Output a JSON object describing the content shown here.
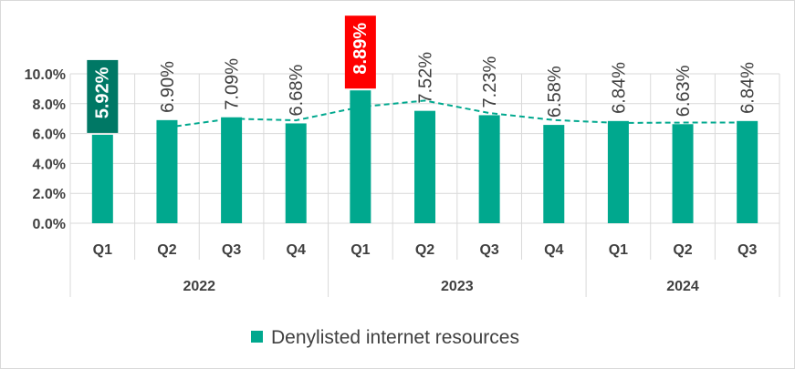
{
  "chart_data": {
    "type": "bar",
    "series": [
      {
        "name": "Denylisted internet resources",
        "values": [
          5.92,
          6.9,
          7.09,
          6.68,
          8.89,
          7.52,
          7.23,
          6.58,
          6.84,
          6.63,
          6.84
        ],
        "labels": [
          "5.92%",
          "6.90%",
          "7.09%",
          "6.68%",
          "8.89%",
          "7.52%",
          "7.23%",
          "6.58%",
          "6.84%",
          "6.63%",
          "6.84%"
        ],
        "color": "#00a88e"
      }
    ],
    "categories": [
      "Q1",
      "Q2",
      "Q3",
      "Q4",
      "Q1",
      "Q2",
      "Q3",
      "Q4",
      "Q1",
      "Q2",
      "Q3"
    ],
    "groups": [
      {
        "label": "2022",
        "count": 4
      },
      {
        "label": "2023",
        "count": 4
      },
      {
        "label": "2024",
        "count": 3
      }
    ],
    "yticks": [
      "0.0%",
      "2.0%",
      "4.0%",
      "6.0%",
      "8.0%",
      "10.0%"
    ],
    "ylim": [
      0,
      10
    ],
    "grid": true,
    "trendline": {
      "style": "dashed",
      "type": "moving-average",
      "period": 2,
      "color": "#00a88e",
      "values": [
        6.41,
        7.0,
        6.885,
        7.785,
        8.205,
        7.375,
        6.905,
        6.71,
        6.735,
        6.735
      ]
    },
    "highlights": [
      {
        "index": 0,
        "color": "#007865"
      },
      {
        "index": 4,
        "color": "#ff0000"
      }
    ],
    "legend_position": "bottom"
  }
}
